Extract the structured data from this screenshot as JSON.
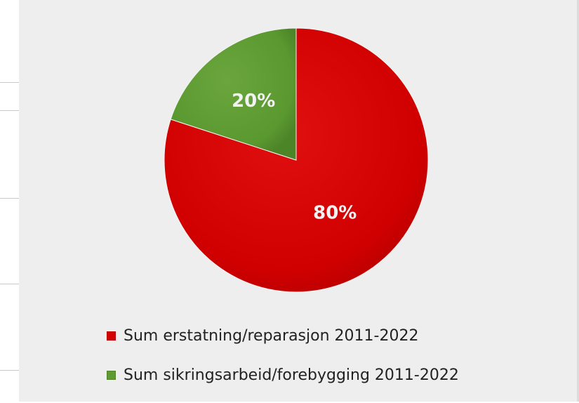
{
  "chart_data": {
    "type": "pie",
    "title": "",
    "slices": [
      {
        "name": "Sum erstatning/reparasjon 2011-2022",
        "value": 80,
        "label": "80%",
        "color": "#d40000"
      },
      {
        "name": "Sum sikringsarbeid/forebygging 2011-2022",
        "value": 20,
        "label": "20%",
        "color": "#5e9a32"
      }
    ],
    "start_angle_deg": 0,
    "direction": "clockwise",
    "legend_position": "bottom",
    "data_labels": true
  }
}
